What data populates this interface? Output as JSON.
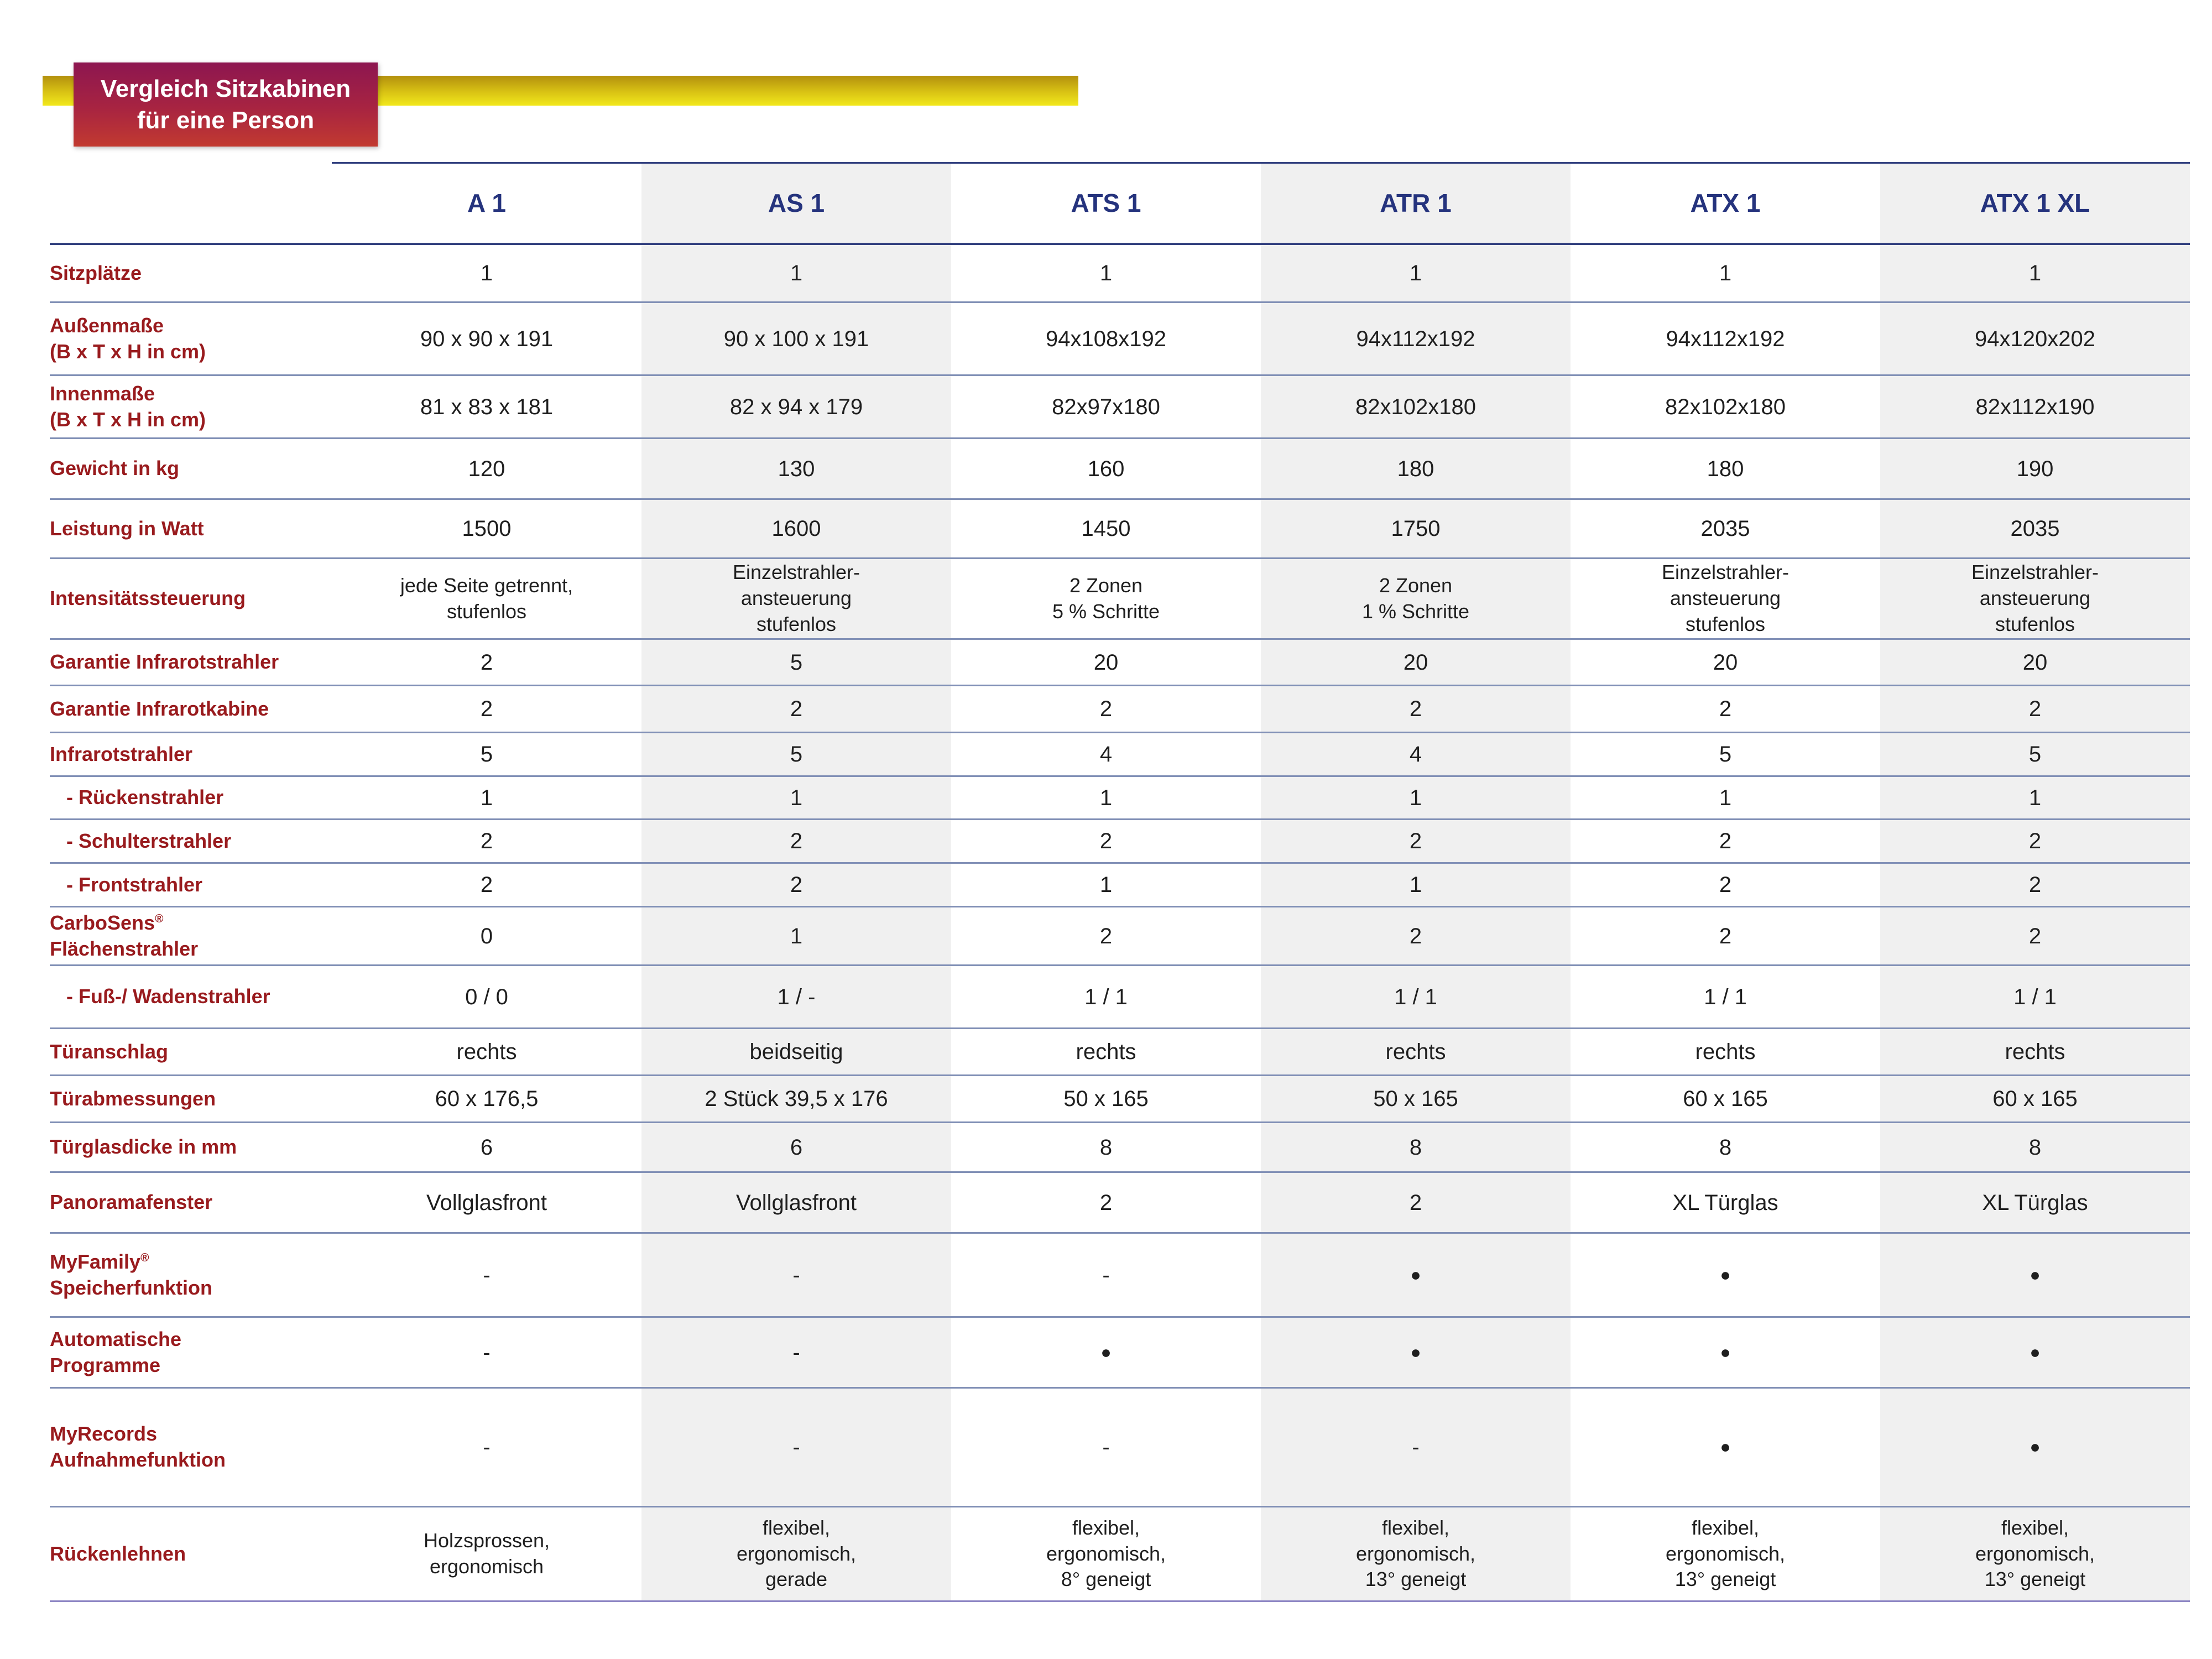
{
  "page": {
    "title_line1": "Vergleich Sitzkabinen",
    "title_line2": "für eine Person"
  },
  "colors": {
    "badge_gradient_top": "#8d1650",
    "badge_gradient_bottom": "#c23a30",
    "accent_bar_yellow": "#e8d918",
    "header_navy": "#25337d",
    "row_label_red": "#991b1e",
    "cell_text": "#1f1f1f",
    "shaded_column": "#f0f0f0",
    "separator_line": "#8190b6"
  },
  "table": {
    "columns": [
      "A 1",
      "AS 1",
      "ATS 1",
      "ATR 1",
      "ATX 1",
      "ATX 1 XL"
    ],
    "shaded_columns": [
      1,
      3,
      5
    ],
    "rows": [
      {
        "label": "Sitzplätze",
        "values": [
          "1",
          "1",
          "1",
          "1",
          "1",
          "1"
        ]
      },
      {
        "label": "Außenmaße\n(B x T x H in cm)",
        "values": [
          "90 x 90 x 191",
          "90 x 100 x 191",
          "94x108x192",
          "94x112x192",
          "94x112x192",
          "94x120x202"
        ]
      },
      {
        "label": "Innenmaße\n(B x T x H in cm)",
        "values": [
          "81 x 83 x 181",
          "82 x 94 x 179",
          "82x97x180",
          "82x102x180",
          "82x102x180",
          "82x112x190"
        ]
      },
      {
        "label": "Gewicht in kg",
        "values": [
          "120",
          "130",
          "160",
          "180",
          "180",
          "190"
        ]
      },
      {
        "label": "Leistung in Watt",
        "values": [
          "1500",
          "1600",
          "1450",
          "1750",
          "2035",
          "2035"
        ]
      },
      {
        "label": "Intensitätssteuerung",
        "values": [
          "jede Seite getrennt,\nstufenlos",
          "Einzelstrahler-\nansteuerung\nstufenlos",
          "2 Zonen\n5 % Schritte",
          "2 Zonen\n1 % Schritte",
          "Einzelstrahler-\nansteuerung\nstufenlos",
          "Einzelstrahler-\nansteuerung\nstufenlos"
        ]
      },
      {
        "label": "Garantie Infrarotstrahler",
        "values": [
          "2",
          "5",
          "20",
          "20",
          "20",
          "20"
        ]
      },
      {
        "label": "Garantie Infrarotkabine",
        "values": [
          "2",
          "2",
          "2",
          "2",
          "2",
          "2"
        ]
      },
      {
        "label": "Infrarotstrahler",
        "values": [
          "5",
          "5",
          "4",
          "4",
          "5",
          "5"
        ]
      },
      {
        "label": "- Rückenstrahler",
        "indent": true,
        "values": [
          "1",
          "1",
          "1",
          "1",
          "1",
          "1"
        ]
      },
      {
        "label": "- Schulterstrahler",
        "indent": true,
        "values": [
          "2",
          "2",
          "2",
          "2",
          "2",
          "2"
        ]
      },
      {
        "label": "- Frontstrahler",
        "indent": true,
        "values": [
          "2",
          "2",
          "1",
          "1",
          "2",
          "2"
        ]
      },
      {
        "label": "CarboSens®\nFlächenstrahler",
        "values": [
          "0",
          "1",
          "2",
          "2",
          "2",
          "2"
        ]
      },
      {
        "label": "- Fuß-/ Wadenstrahler",
        "indent": true,
        "values": [
          "0 / 0",
          "1 / -",
          "1 / 1",
          "1 / 1",
          "1 / 1",
          "1 / 1"
        ]
      },
      {
        "label": "Türanschlag",
        "values": [
          "rechts",
          "beidseitig",
          "rechts",
          "rechts",
          "rechts",
          "rechts"
        ]
      },
      {
        "label": "Türabmessungen",
        "values": [
          "60 x 176,5",
          "2 Stück 39,5 x 176",
          "50 x 165",
          "50 x 165",
          "60 x 165",
          "60 x 165"
        ]
      },
      {
        "label": "Türglasdicke in mm",
        "values": [
          "6",
          "6",
          "8",
          "8",
          "8",
          "8"
        ]
      },
      {
        "label": "Panoramafenster",
        "values": [
          "Vollglasfront",
          "Vollglasfront",
          "2",
          "2",
          "XL Türglas",
          "XL Türglas"
        ]
      },
      {
        "label": "MyFamily®\nSpeicherfunktion",
        "values": [
          "-",
          "-",
          "-",
          "●",
          "●",
          "●"
        ]
      },
      {
        "label": "Automatische\nProgramme",
        "values": [
          "-",
          "-",
          "●",
          "●",
          "●",
          "●"
        ]
      },
      {
        "label": "MyRecords\nAufnahmefunktion",
        "values": [
          "-",
          "-",
          "-",
          "-",
          "●",
          "●"
        ]
      },
      {
        "label": "Rückenlehnen",
        "values": [
          "Holzsprossen,\nergonomisch",
          "flexibel,\nergonomisch,\ngerade",
          "flexibel,\nergonomisch,\n8° geneigt",
          "flexibel,\nergonomisch,\n13° geneigt",
          "flexibel,\nergonomisch,\n13° geneigt",
          "flexibel,\nergonomisch,\n13° geneigt"
        ]
      }
    ]
  }
}
